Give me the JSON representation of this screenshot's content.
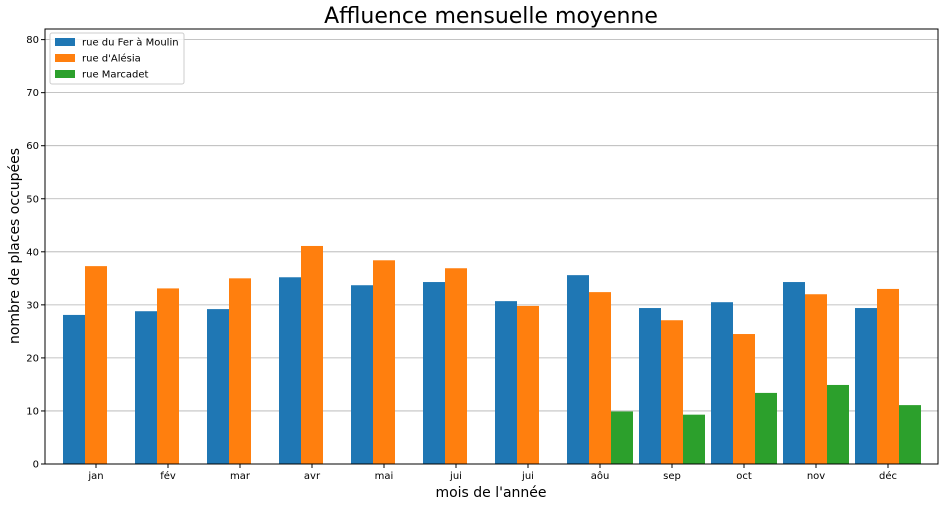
{
  "chart_data": {
    "type": "bar",
    "title": "Affluence mensuelle moyenne",
    "xlabel": "mois de l'année",
    "ylabel": "nombre de places occupées",
    "ylim": [
      0,
      82
    ],
    "yticks": [
      0,
      10,
      20,
      30,
      40,
      50,
      60,
      70,
      80
    ],
    "grid": "horizontal",
    "legend_position": "top-left",
    "categories": [
      "jan",
      "fév",
      "mar",
      "avr",
      "mai",
      "jui",
      "jui",
      "aôu",
      "sep",
      "oct",
      "nov",
      "déc"
    ],
    "series": [
      {
        "name": "rue du Fer à Moulin",
        "color": "#1f77b4",
        "values": [
          28.1,
          28.8,
          29.2,
          35.2,
          33.7,
          34.3,
          30.7,
          35.6,
          29.4,
          30.5,
          34.3,
          29.4
        ]
      },
      {
        "name": "rue d'Alésia",
        "color": "#ff7f0e",
        "values": [
          37.3,
          33.1,
          35.0,
          41.1,
          38.4,
          36.9,
          29.8,
          32.4,
          27.1,
          24.5,
          32.0,
          33.0
        ]
      },
      {
        "name": "rue Marcadet",
        "color": "#2ca02c",
        "values": [
          null,
          null,
          null,
          null,
          null,
          null,
          null,
          9.9,
          9.3,
          13.4,
          14.9,
          11.1
        ]
      }
    ]
  }
}
